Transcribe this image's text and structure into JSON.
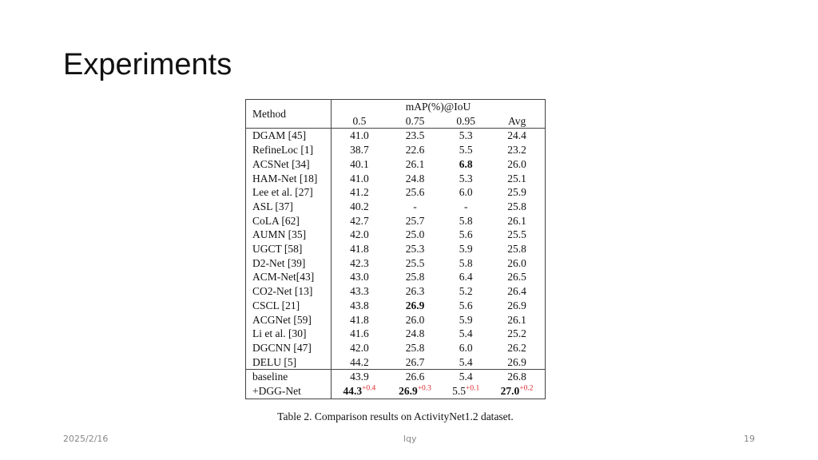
{
  "title": "Experiments",
  "table": {
    "header": {
      "method": "Method",
      "metric": "mAP(%)@IoU",
      "thresholds": [
        "0.5",
        "0.75",
        "0.95",
        "Avg"
      ]
    },
    "rows": [
      [
        "DGAM [45]",
        "41.0",
        "23.5",
        "5.3",
        "24.4"
      ],
      [
        "RefineLoc [1]",
        "38.7",
        "22.6",
        "5.5",
        "23.2"
      ],
      [
        "ACSNet [34]",
        "40.1",
        "26.1",
        "6.8",
        "26.0"
      ],
      [
        "HAM-Net [18]",
        "41.0",
        "24.8",
        "5.3",
        "25.1"
      ],
      [
        "Lee et al. [27]",
        "41.2",
        "25.6",
        "6.0",
        "25.9"
      ],
      [
        "ASL [37]",
        "40.2",
        "-",
        "-",
        "25.8"
      ],
      [
        "CoLA [62]",
        "42.7",
        "25.7",
        "5.8",
        "26.1"
      ],
      [
        "AUMN [35]",
        "42.0",
        "25.0",
        "5.6",
        "25.5"
      ],
      [
        "UGCT [58]",
        "41.8",
        "25.3",
        "5.9",
        "25.8"
      ],
      [
        "D2-Net [39]",
        "42.3",
        "25.5",
        "5.8",
        "26.0"
      ],
      [
        "ACM-Net[43]",
        "43.0",
        "25.8",
        "6.4",
        "26.5"
      ],
      [
        "CO2-Net [13]",
        "43.3",
        "26.3",
        "5.2",
        "26.4"
      ],
      [
        "CSCL [21]",
        "43.8",
        "26.9",
        "5.6",
        "26.9"
      ],
      [
        "ACGNet [59]",
        "41.8",
        "26.0",
        "5.9",
        "26.1"
      ],
      [
        "Li et al. [30]",
        "41.6",
        "24.8",
        "5.4",
        "25.2"
      ],
      [
        "DGCNN [47]",
        "42.0",
        "25.8",
        "6.0",
        "26.2"
      ],
      [
        "DELU [5]",
        "44.2",
        "26.7",
        "5.4",
        "26.9"
      ]
    ],
    "bold": [
      [
        2,
        3
      ],
      [
        12,
        2
      ]
    ],
    "baseline": [
      "baseline",
      "43.9",
      "26.6",
      "5.4",
      "26.8"
    ],
    "ours": {
      "cells": [
        "+DGG-Net",
        "44.3",
        "26.9",
        "5.5",
        "27.0"
      ],
      "deltas": [
        "+0.4",
        "+0.3",
        "+0.1",
        "+0.2"
      ],
      "bold": [
        1,
        2,
        4
      ]
    },
    "caption": "Table 2. Comparison results on ActivityNet1.2 dataset."
  },
  "footer": {
    "date": "2025/2/16",
    "author": "lqy",
    "page": "19"
  }
}
